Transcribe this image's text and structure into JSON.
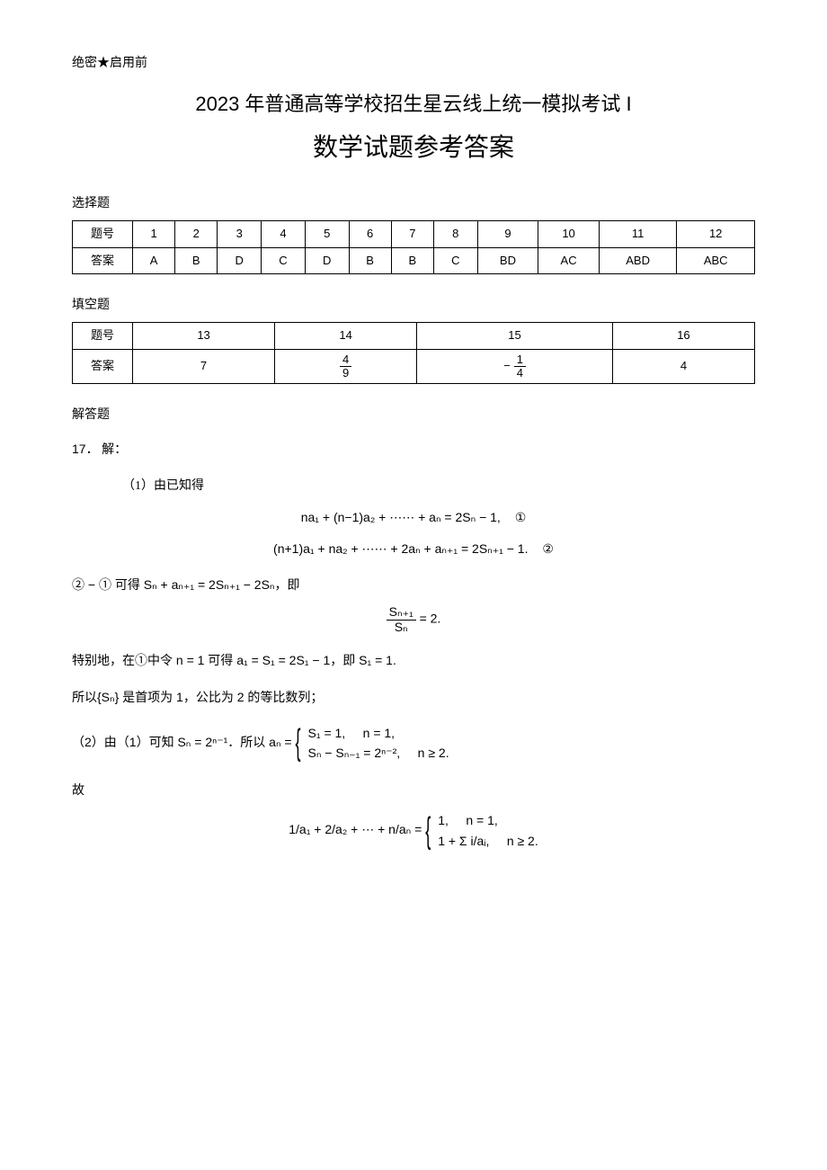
{
  "header": {
    "top_note": "绝密★启用前",
    "title1": "2023 年普通高等学校招生星云线上统一模拟考试 I",
    "title2": "数学试题参考答案"
  },
  "mc": {
    "label": "选择题",
    "row_header": "题号",
    "row_answer": "答案",
    "nums": [
      "1",
      "2",
      "3",
      "4",
      "5",
      "6",
      "7",
      "8",
      "9",
      "10",
      "11",
      "12"
    ],
    "answers": [
      "A",
      "B",
      "D",
      "C",
      "D",
      "B",
      "B",
      "C",
      "BD",
      "AC",
      "ABD",
      "ABC"
    ]
  },
  "fill": {
    "label": "填空题",
    "row_header": "题号",
    "row_answer": "答案",
    "nums": [
      "13",
      "14",
      "15",
      "16"
    ],
    "answers_plain": [
      "7",
      "4/9",
      "−1/4",
      "4"
    ],
    "ans13": "7",
    "ans14_num": "4",
    "ans14_den": "9",
    "ans15_sign": "−",
    "ans15_num": "1",
    "ans15_den": "4",
    "ans16": "4"
  },
  "solutions": {
    "label": "解答题",
    "q17": {
      "num": "17．",
      "word_solution": "解：",
      "p1_intro": "（1）由已知得",
      "eq1_left": "na₁ + (n−1)a₂ + ⋯⋯ + aₙ = 2Sₙ − 1,",
      "eq1_tag": "①",
      "eq2_left": "(n+1)a₁ + na₂ + ⋯⋯ + 2aₙ + aₙ₊₁ = 2Sₙ₊₁ − 1.",
      "eq2_tag": "②",
      "diff_line": "② − ① 可得 Sₙ + aₙ₊₁ = 2Sₙ₊₁ − 2Sₙ，即",
      "ratio_frac_top": "Sₙ₊₁",
      "ratio_frac_bot": "Sₙ",
      "ratio_eq": " = 2.",
      "special_line_a": "特别地，在①中令 n = 1 可得 a₁ = S₁ = 2S₁ − 1，即 S₁ = 1.",
      "conclusion1": "所以{Sₙ} 是首项为 1，公比为 2 的等比数列；",
      "p2_intro": "（2）由（1）可知 Sₙ = 2ⁿ⁻¹．所以 aₙ =",
      "case_top1": "S₁ = 1,",
      "case_cond1": "n = 1,",
      "case_top2": "Sₙ − Sₙ₋₁ = 2ⁿ⁻²,",
      "case_cond2": "n ≥ 2.",
      "gu": "故",
      "final_lhs": "1/a₁ + 2/a₂ + ⋯ + n/aₙ =",
      "final_case1": "1,",
      "final_cond1": "n = 1,",
      "final_case2": "1 + Σ i/aᵢ,",
      "final_cond2": "n ≥ 2."
    }
  },
  "style": {
    "bg": "#ffffff",
    "text": "#000000",
    "border": "#000000",
    "body_font_size": 14,
    "title1_font_size": 22,
    "title2_font_size": 28
  }
}
